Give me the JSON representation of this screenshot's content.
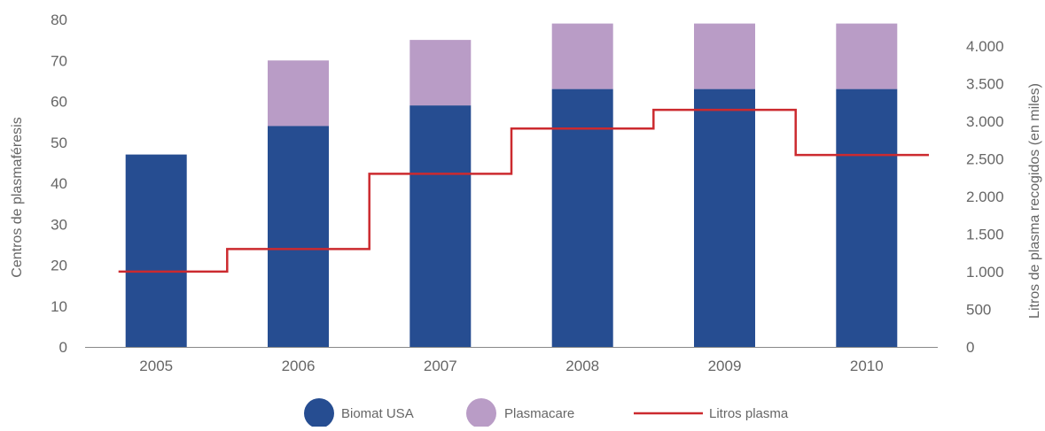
{
  "chart_data": {
    "type": "bar",
    "categories": [
      "2005",
      "2006",
      "2007",
      "2008",
      "2009",
      "2010"
    ],
    "series": [
      {
        "name": "Biomat USA",
        "type": "bar",
        "stacked": true,
        "axis": "left",
        "values": [
          47,
          54,
          59,
          63,
          63,
          63
        ]
      },
      {
        "name": "Plasmacare",
        "type": "bar",
        "stacked": true,
        "axis": "left",
        "values": [
          0,
          16,
          16,
          16,
          16,
          16
        ]
      },
      {
        "name": "Litros plasma",
        "type": "line",
        "step": true,
        "axis": "right",
        "values": [
          1000,
          1300,
          2300,
          2900,
          3150,
          2550
        ]
      }
    ],
    "ylabel": "Centros de plasmaféresis",
    "ylabel_right": "Litros de plasma recogidos (en miles)",
    "ylim": [
      0,
      80
    ],
    "ylim_right": [
      0,
      4350
    ],
    "yticks": [
      0,
      10,
      20,
      30,
      40,
      50,
      60,
      70,
      80
    ],
    "yticks_right": [
      0,
      500,
      1000,
      1500,
      2000,
      2500,
      3000,
      3500,
      4000
    ],
    "yticks_right_labels": [
      "0",
      "500",
      "1.000",
      "1.500",
      "2.000",
      "2.500",
      "3.000",
      "3.500",
      "4.000"
    ],
    "grid": false,
    "legend_position": "bottom",
    "colors": {
      "Biomat USA": "#264d91",
      "Plasmacare": "#b99cc6",
      "Litros plasma": "#cc2a2f",
      "axis": "#888888",
      "text": "#666666"
    }
  }
}
